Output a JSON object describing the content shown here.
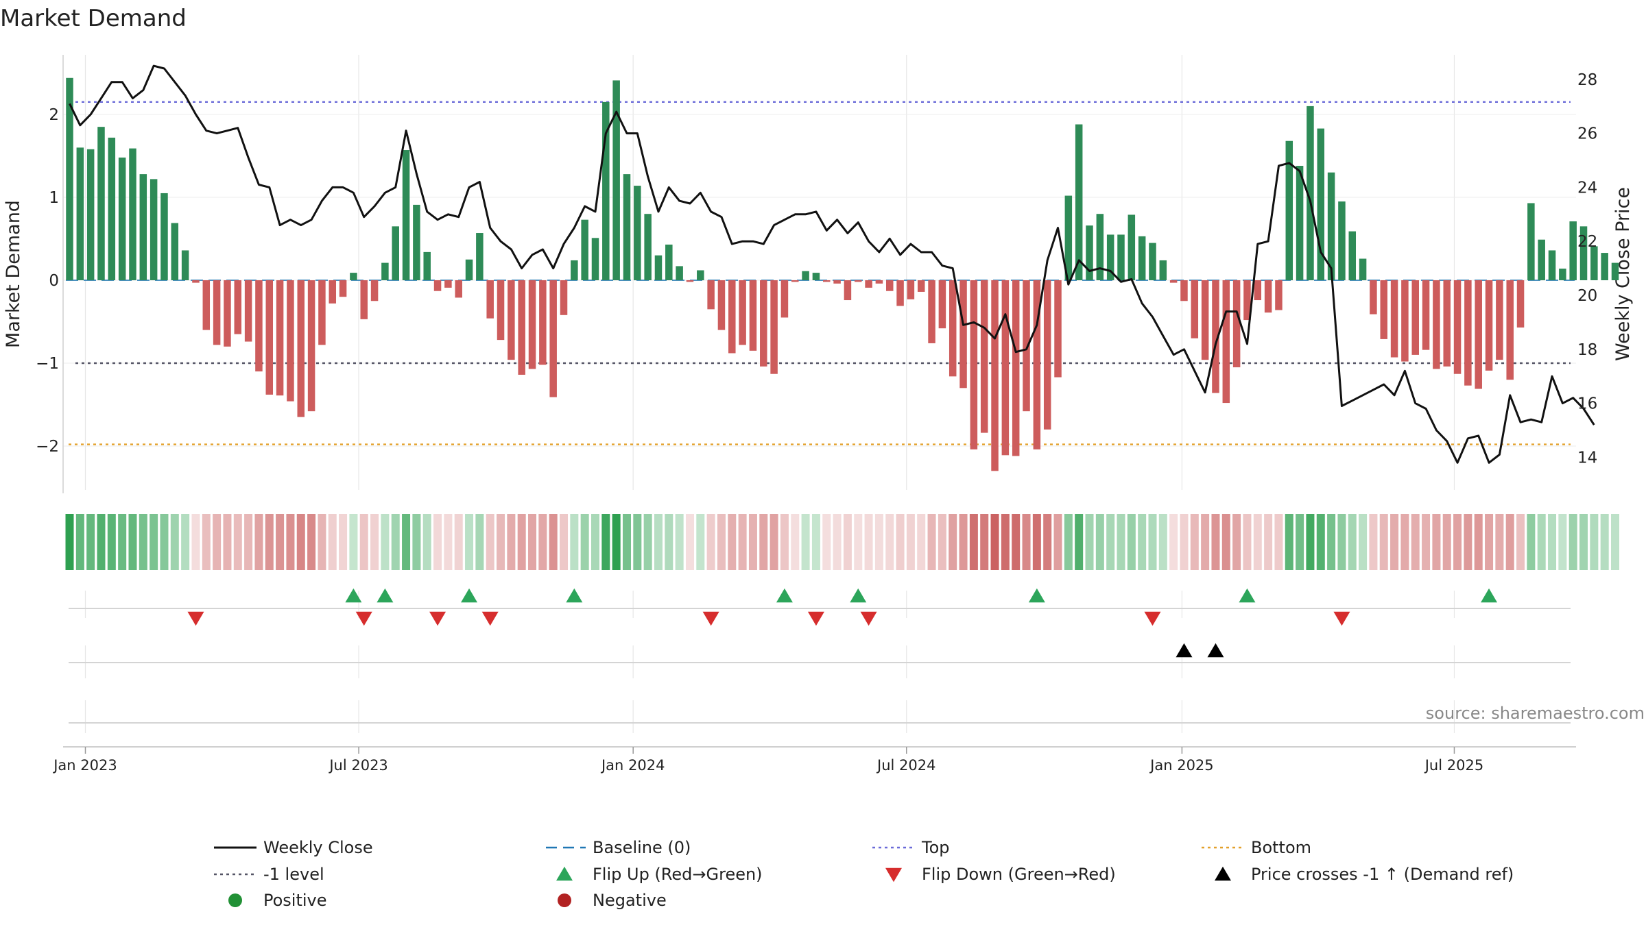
{
  "chart_data": {
    "type": "bar",
    "title": "Market Demand",
    "ylabel_left": "Market Demand",
    "ylabel_right": "Weekly Close Price",
    "source": "source: sharemaestro.com",
    "ylim_left": [
      -2.6,
      2.6
    ],
    "ylim_right": [
      13,
      28.8
    ],
    "yticks_left": [
      {
        "value": 2,
        "label": "2"
      },
      {
        "value": 1,
        "label": "1"
      },
      {
        "value": 0,
        "label": "0"
      },
      {
        "value": -1,
        "label": "−1"
      },
      {
        "value": -2,
        "label": "−2"
      }
    ],
    "yticks_right": [
      {
        "value": 28,
        "label": "28"
      },
      {
        "value": 26,
        "label": "26"
      },
      {
        "value": 24,
        "label": "24"
      },
      {
        "value": 22,
        "label": "22"
      },
      {
        "value": 20,
        "label": "20"
      },
      {
        "value": 18,
        "label": "18"
      },
      {
        "value": 16,
        "label": "16"
      },
      {
        "value": 14,
        "label": "14"
      }
    ],
    "x_start": "2022-12-26",
    "x_ticks": [
      {
        "week": 1.5,
        "label": "Jan 2023"
      },
      {
        "week": 27.5,
        "label": "Jul 2023"
      },
      {
        "week": 53.6,
        "label": "Jan 2024"
      },
      {
        "week": 79.6,
        "label": "Jul 2024"
      },
      {
        "week": 105.8,
        "label": "Jan 2025"
      },
      {
        "week": 131.7,
        "label": "Jul 2025"
      }
    ],
    "reference_lines": {
      "top": 2.15,
      "bottom": -1.98,
      "minus_one": -1,
      "baseline": 0
    },
    "demand": [
      2.44,
      1.6,
      1.58,
      1.85,
      1.72,
      1.48,
      1.59,
      1.28,
      1.22,
      1.05,
      0.69,
      0.36,
      -0.03,
      -0.6,
      -0.78,
      -0.8,
      -0.65,
      -0.74,
      -1.1,
      -1.38,
      -1.39,
      -1.46,
      -1.65,
      -1.58,
      -0.78,
      -0.28,
      -0.2,
      0.09,
      -0.47,
      -0.25,
      0.21,
      0.65,
      1.57,
      0.91,
      0.34,
      -0.13,
      -0.09,
      -0.21,
      0.25,
      0.57,
      -0.46,
      -0.72,
      -0.96,
      -1.14,
      -1.07,
      -1.02,
      -1.41,
      -0.42,
      0.24,
      0.73,
      0.51,
      2.15,
      2.41,
      1.28,
      1.14,
      0.8,
      0.3,
      0.43,
      0.17,
      -0.02,
      0.12,
      -0.35,
      -0.6,
      -0.88,
      -0.78,
      -0.85,
      -1.04,
      -1.13,
      -0.45,
      -0.02,
      0.11,
      0.09,
      -0.02,
      -0.04,
      -0.24,
      -0.02,
      -0.09,
      -0.04,
      -0.13,
      -0.31,
      -0.23,
      -0.14,
      -0.76,
      -0.58,
      -1.16,
      -1.3,
      -2.04,
      -1.84,
      -2.3,
      -2.11,
      -2.12,
      -1.58,
      -2.04,
      -1.8,
      -1.17,
      1.02,
      1.88,
      0.66,
      0.8,
      0.55,
      0.55,
      0.79,
      0.53,
      0.45,
      0.24,
      -0.03,
      -0.25,
      -0.7,
      -0.96,
      -1.36,
      -1.48,
      -1.05,
      -0.48,
      -0.24,
      -0.39,
      -0.36,
      1.68,
      1.38,
      2.1,
      1.83,
      1.3,
      0.95,
      0.59,
      0.26,
      -0.41,
      -0.71,
      -0.93,
      -0.98,
      -0.9,
      -0.84,
      -1.07,
      -1.04,
      -1.13,
      -1.27,
      -1.31,
      -1.09,
      -0.96,
      -1.2,
      -0.57,
      0.93,
      0.49,
      0.36,
      0.14,
      0.71,
      0.65,
      0.41,
      0.33,
      0.21
    ],
    "weekly_close": [
      27.1,
      26.3,
      26.7,
      27.3,
      27.9,
      27.9,
      27.3,
      27.6,
      28.5,
      28.4,
      27.9,
      27.4,
      26.7,
      26.1,
      26.0,
      26.1,
      26.2,
      25.1,
      24.1,
      24.0,
      22.6,
      22.8,
      22.6,
      22.8,
      23.5,
      24.0,
      24.0,
      23.8,
      22.9,
      23.3,
      23.8,
      24.0,
      26.1,
      24.5,
      23.1,
      22.8,
      23.0,
      22.9,
      24.0,
      24.2,
      22.5,
      22.0,
      21.7,
      21.0,
      21.5,
      21.7,
      21.0,
      21.9,
      22.5,
      23.3,
      23.1,
      26.0,
      26.8,
      26.0,
      26.0,
      24.4,
      23.1,
      24.0,
      23.5,
      23.4,
      23.8,
      23.1,
      22.9,
      21.9,
      22.0,
      22.0,
      21.9,
      22.6,
      22.8,
      23.0,
      23.0,
      23.1,
      22.4,
      22.8,
      22.3,
      22.7,
      22.0,
      21.6,
      22.1,
      21.5,
      21.9,
      21.6,
      21.6,
      21.1,
      21.0,
      18.9,
      19.0,
      18.8,
      18.4,
      19.3,
      17.9,
      18.0,
      18.9,
      21.3,
      22.5,
      20.4,
      21.3,
      20.9,
      21.0,
      20.9,
      20.5,
      20.6,
      19.7,
      19.2,
      18.5,
      17.8,
      18.0,
      17.2,
      16.4,
      18.2,
      19.4,
      19.4,
      18.2,
      21.9,
      22.0,
      24.8,
      24.9,
      24.6,
      23.5,
      21.6,
      21.0,
      15.9,
      16.1,
      16.3,
      16.5,
      16.7,
      16.3,
      17.2,
      16.0,
      15.8,
      15.0,
      14.6,
      13.8,
      14.7,
      14.8,
      13.8,
      14.1,
      16.3,
      15.3,
      15.4,
      15.3,
      17.0,
      16.0,
      16.2,
      15.8,
      15.2
    ],
    "flip_up_weeks": [
      27,
      30,
      38,
      48,
      68,
      75,
      92,
      112,
      135
    ],
    "flip_down_weeks": [
      12,
      28,
      35,
      40,
      61,
      71,
      76,
      103,
      121
    ],
    "price_cross_weeks": [
      106,
      109
    ],
    "legend": [
      {
        "key": "weekly_close",
        "label": "Weekly Close",
        "symbol": "line",
        "color": "#111111"
      },
      {
        "key": "baseline",
        "label": "Baseline (0)",
        "symbol": "dash",
        "color": "#1f77b4"
      },
      {
        "key": "top",
        "label": "Top",
        "symbol": "dot",
        "color": "#6a6ad8"
      },
      {
        "key": "bottom",
        "label": "Bottom",
        "symbol": "dot",
        "color": "#e3a02a"
      },
      {
        "key": "minus_one",
        "label": "-1 level",
        "symbol": "dot",
        "color": "#555566"
      },
      {
        "key": "flip_up",
        "label": "Flip Up (Red→Green)",
        "symbol": "tri-up",
        "color": "#2ca55a"
      },
      {
        "key": "flip_down",
        "label": "Flip Down (Green→Red)",
        "symbol": "tri-down",
        "color": "#d62d2d"
      },
      {
        "key": "price_cross",
        "label": "Price crosses -1 ↑ (Demand ref)",
        "symbol": "tri-up",
        "color": "#000000"
      },
      {
        "key": "positive",
        "label": "Positive",
        "symbol": "circle",
        "color": "#229136"
      },
      {
        "key": "negative",
        "label": "Negative",
        "symbol": "circle",
        "color": "#b22222"
      }
    ],
    "colors": {
      "positive_bar": "#2e8b57",
      "negative_bar": "#cd5c5c",
      "price_line": "#111111",
      "grid": "#e6e6e6",
      "axis": "#cfcfcf"
    }
  }
}
